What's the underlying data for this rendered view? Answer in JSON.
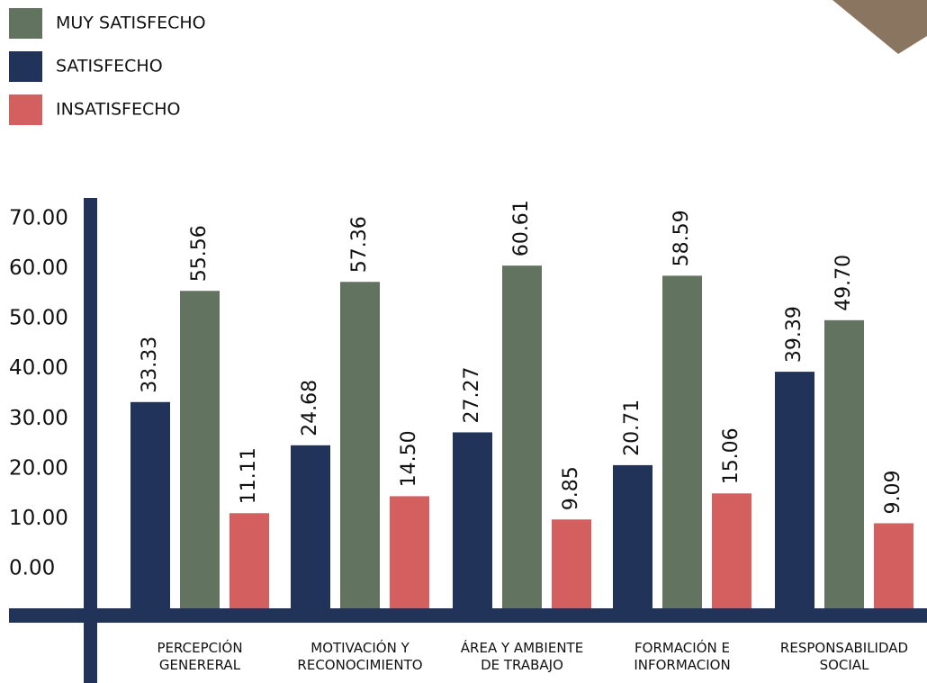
{
  "chart_data": {
    "type": "bar",
    "categories": [
      "PERCEPCIÓN\nGENERERAL",
      "MOTIVACIÓN Y\nRECONOCIMIENTO",
      "ÁREA Y AMBIENTE\nDE TRABAJO",
      "FORMACIÓN E\nINFORMACION",
      "RESPONSABILIDAD\nSOCIAL"
    ],
    "series": [
      {
        "name": "SATISFECHO",
        "color": "#22335a",
        "values": [
          33.33,
          24.68,
          27.27,
          20.71,
          39.39
        ],
        "value_labels": [
          "33.33",
          "24.68",
          "27.27",
          "20.71",
          "39.39"
        ]
      },
      {
        "name": "MUY SATISFECHO",
        "color": "#62735f",
        "values": [
          55.56,
          57.36,
          60.61,
          58.59,
          49.7
        ],
        "value_labels": [
          "55.56",
          "57.36",
          "60.61",
          "58.59",
          "49.70"
        ]
      },
      {
        "name": "INSATISFECHO",
        "color": "#d35f5f",
        "values": [
          11.11,
          14.5,
          9.85,
          15.06,
          9.09
        ],
        "value_labels": [
          "11.11",
          "14.50",
          "9.85",
          "15.06",
          "9.09"
        ]
      }
    ],
    "legend_order": [
      1,
      0,
      2
    ],
    "ylim": [
      0,
      70
    ],
    "yticks": [
      {
        "value": 0,
        "label": "0.00"
      },
      {
        "value": 10,
        "label": "10.00"
      },
      {
        "value": 20,
        "label": "20.00"
      },
      {
        "value": 30,
        "label": "30.00"
      },
      {
        "value": 40,
        "label": "40.00"
      },
      {
        "value": 50,
        "label": "50.00"
      },
      {
        "value": 60,
        "label": "60.00"
      },
      {
        "value": 70,
        "label": "70.00"
      }
    ]
  }
}
